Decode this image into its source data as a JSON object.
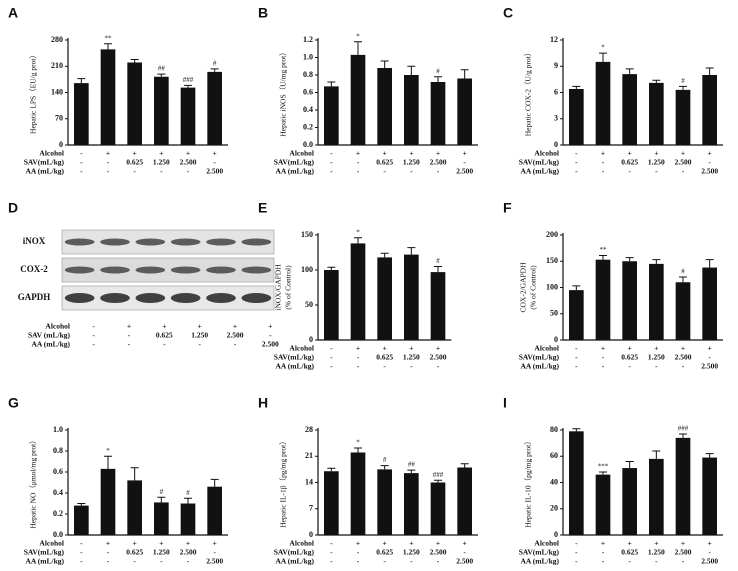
{
  "chart_data": [
    {
      "type": "bar",
      "letter": "A",
      "y_label": [
        "Hepatic LPS（EU/g prot）"
      ],
      "ylim": [
        0,
        280
      ],
      "yticks": [
        0,
        70,
        140,
        210,
        280
      ],
      "values": [
        165,
        255,
        220,
        182,
        153,
        195
      ],
      "errors": [
        12,
        15,
        8,
        7,
        6,
        8
      ],
      "annotations": [
        null,
        "**",
        null,
        "##",
        "###",
        "#"
      ],
      "color": "#111111",
      "conditions": [
        {
          "label": "Alcohol",
          "values": [
            "-",
            "+",
            "+",
            "+",
            "+",
            "+"
          ]
        },
        {
          "label": "SAV(mL/kg)",
          "values": [
            "-",
            "-",
            "0.625",
            "1.250",
            "2.500",
            "-"
          ]
        },
        {
          "label": "AA (mL/kg)",
          "values": [
            "-",
            "-",
            "-",
            "-",
            "-",
            "2.500"
          ]
        }
      ]
    },
    {
      "type": "bar",
      "letter": "B",
      "y_label": [
        "Hepatic iNOS（U/mg prot）"
      ],
      "ylim": [
        0,
        1.2
      ],
      "yticks": [
        {
          "value": 0,
          "label": "0.0"
        },
        0.2,
        0.4,
        0.6,
        0.8,
        {
          "value": 1,
          "label": "1.0"
        },
        1.2
      ],
      "values": [
        0.67,
        1.03,
        0.88,
        0.8,
        0.72,
        0.76
      ],
      "errors": [
        0.05,
        0.15,
        0.08,
        0.1,
        0.06,
        0.1
      ],
      "annotations": [
        null,
        "*",
        null,
        null,
        "#",
        null
      ],
      "color": "#111111",
      "conditions": [
        {
          "label": "Alcohol",
          "values": [
            "-",
            "+",
            "+",
            "+",
            "+",
            "+"
          ]
        },
        {
          "label": "SAV(mL/kg)",
          "values": [
            "-",
            "-",
            "0.625",
            "1.250",
            "2.500",
            "-"
          ]
        },
        {
          "label": "AA (mL/kg)",
          "values": [
            "-",
            "-",
            "-",
            "-",
            "-",
            "2.500"
          ]
        }
      ]
    },
    {
      "type": "bar",
      "letter": "C",
      "y_label": [
        "Hepatic COX-2（U/g prot）"
      ],
      "ylim": [
        0,
        12
      ],
      "yticks": [
        0,
        3,
        6,
        9,
        12
      ],
      "values": [
        6.4,
        9.5,
        8.1,
        7.1,
        6.3,
        8.0
      ],
      "errors": [
        0.3,
        1.0,
        0.6,
        0.3,
        0.4,
        0.8
      ],
      "annotations": [
        null,
        "*",
        null,
        null,
        "#",
        null
      ],
      "color": "#111111",
      "conditions": [
        {
          "label": "Alcohol",
          "values": [
            "-",
            "+",
            "+",
            "+",
            "+",
            "+"
          ]
        },
        {
          "label": "SAV(mL/kg)",
          "values": [
            "-",
            "-",
            "0.625",
            "1.250",
            "2.500",
            "-"
          ]
        },
        {
          "label": "AA (mL/kg)",
          "values": [
            "-",
            "-",
            "-",
            "-",
            "-",
            "2.500"
          ]
        }
      ]
    },
    {
      "type": "bar",
      "letter": "E",
      "y_label": [
        "iNOX/GAPDH",
        "(% of Control)"
      ],
      "ylim": [
        0,
        150
      ],
      "yticks": [
        0,
        50,
        100,
        150
      ],
      "values": [
        100,
        138,
        118,
        122,
        97
      ],
      "errors": [
        4,
        8,
        6,
        10,
        8
      ],
      "annotations": [
        null,
        "*",
        null,
        null,
        "#"
      ],
      "color": "#111111",
      "conditions": [
        {
          "label": "Alcohol",
          "values": [
            "-",
            "+",
            "+",
            "+",
            "+"
          ]
        },
        {
          "label": "SAV(mL/kg)",
          "values": [
            "-",
            "-",
            "0.625",
            "1.250",
            "2.500"
          ]
        },
        {
          "label": "AA (mL/kg)",
          "values": [
            "-",
            "-",
            "-",
            "-",
            "-"
          ]
        }
      ]
    },
    {
      "type": "bar",
      "letter": "F",
      "y_label": [
        "COX-2/GAPDH",
        "(% of Control)"
      ],
      "ylim": [
        0,
        200
      ],
      "yticks": [
        0,
        50,
        100,
        150,
        200
      ],
      "values": [
        95,
        153,
        150,
        145,
        110,
        138
      ],
      "errors": [
        8,
        8,
        7,
        8,
        10,
        15
      ],
      "annotations": [
        null,
        "**",
        null,
        null,
        "#",
        null
      ],
      "color": "#111111",
      "conditions": [
        {
          "label": "Alcohol",
          "values": [
            "-",
            "+",
            "+",
            "+",
            "+",
            "+"
          ]
        },
        {
          "label": "SAV(mL/kg)",
          "values": [
            "-",
            "-",
            "0.625",
            "1.250",
            "2.500",
            "-"
          ]
        },
        {
          "label": "AA (mL/kg)",
          "values": [
            "-",
            "-",
            "-",
            "-",
            "-",
            "2.500"
          ]
        }
      ]
    },
    {
      "type": "bar",
      "letter": "G",
      "y_label": [
        "Hepatic NO（μmol/mg prot）"
      ],
      "ylim": [
        0,
        1
      ],
      "yticks": [
        {
          "value": 0,
          "label": "0.0"
        },
        0.2,
        0.4,
        0.6,
        0.8,
        {
          "value": 1,
          "label": "1.0"
        }
      ],
      "values": [
        0.28,
        0.63,
        0.52,
        0.31,
        0.3,
        0.46
      ],
      "errors": [
        0.02,
        0.12,
        0.12,
        0.05,
        0.05,
        0.07
      ],
      "annotations": [
        null,
        "*",
        null,
        "#",
        "#",
        null
      ],
      "color": "#111111",
      "conditions": [
        {
          "label": "Alcohol",
          "values": [
            "-",
            "+",
            "+",
            "+",
            "+",
            "+"
          ]
        },
        {
          "label": "SAV(mL/kg)",
          "values": [
            "-",
            "-",
            "0.625",
            "1.250",
            "2.500",
            "-"
          ]
        },
        {
          "label": "AA (mL/kg)",
          "values": [
            "-",
            "-",
            "-",
            "-",
            "-",
            "2.500"
          ]
        }
      ]
    },
    {
      "type": "bar",
      "letter": "H",
      "y_label": [
        "Hepatic IL-1β（pg/mg prot）"
      ],
      "ylim": [
        0,
        28
      ],
      "yticks": [
        0,
        7,
        14,
        21,
        28
      ],
      "values": [
        17,
        22,
        17.5,
        16.5,
        14,
        18
      ],
      "errors": [
        0.8,
        1.2,
        1.0,
        0.8,
        0.6,
        1.0
      ],
      "annotations": [
        null,
        "*",
        "#",
        "##",
        "###",
        null
      ],
      "color": "#111111",
      "conditions": [
        {
          "label": "Alcohol",
          "values": [
            "-",
            "+",
            "+",
            "+",
            "+",
            "+"
          ]
        },
        {
          "label": "SAV(mL/kg)",
          "values": [
            "-",
            "-",
            "0.625",
            "1.250",
            "2.500",
            "-"
          ]
        },
        {
          "label": "AA (mL/kg)",
          "values": [
            "-",
            "-",
            "-",
            "-",
            "-",
            "2.500"
          ]
        }
      ]
    },
    {
      "type": "bar",
      "letter": "I",
      "y_label": [
        "Hepatic IL-10（pg/mg prot）"
      ],
      "ylim": [
        0,
        80
      ],
      "yticks": [
        0,
        20,
        40,
        60,
        80
      ],
      "values": [
        79,
        46,
        51,
        58,
        74,
        59
      ],
      "errors": [
        2,
        2,
        5,
        6,
        3,
        3
      ],
      "annotations": [
        null,
        "***",
        null,
        null,
        "###",
        null
      ],
      "color": "#111111",
      "conditions": [
        {
          "label": "Alcohol",
          "values": [
            "-",
            "+",
            "+",
            "+",
            "+",
            "+"
          ]
        },
        {
          "label": "SAV(mL/kg)",
          "values": [
            "-",
            "-",
            "0.625",
            "1.250",
            "2.500",
            "-"
          ]
        },
        {
          "label": "AA (mL/kg)",
          "values": [
            "-",
            "-",
            "-",
            "-",
            "-",
            "2.500"
          ]
        }
      ]
    }
  ],
  "blot": {
    "letter": "D",
    "bands": [
      "iNOX",
      "COX-2",
      "GAPDH"
    ],
    "conditions": [
      {
        "label": "Alcohol",
        "values": [
          "-",
          "+",
          "+",
          "+",
          "+",
          "+"
        ]
      },
      {
        "label": "SAV (mL/kg)",
        "values": [
          "-",
          "-",
          "0.625",
          "1.250",
          "2.500",
          "-"
        ]
      },
      {
        "label": "AA (mL/kg)",
        "values": [
          "-",
          "-",
          "-",
          "-",
          "-",
          "2.500"
        ]
      }
    ]
  }
}
